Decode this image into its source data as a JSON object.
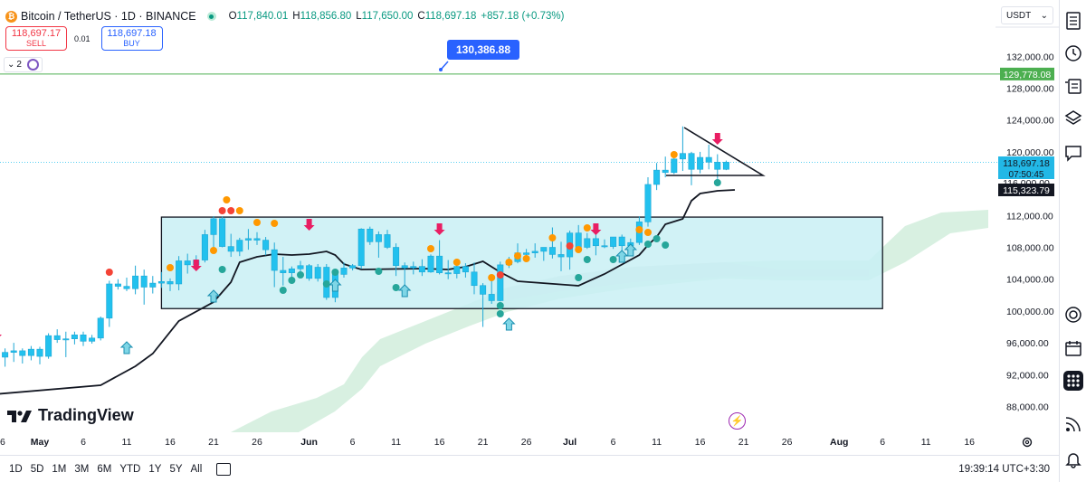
{
  "header": {
    "symbol_title": "Bitcoin / TetherUS · 1D · BINANCE",
    "logo_letter": "₿",
    "ohlc": [
      {
        "k": "O",
        "v": "117,840.01"
      },
      {
        "k": "H",
        "v": "118,856.80"
      },
      {
        "k": "L",
        "v": "117,650.00"
      },
      {
        "k": "C",
        "v": "118,697.18"
      },
      {
        "k": "",
        "v": "+857.18 (+0.73%)"
      }
    ]
  },
  "trade": {
    "sell_price": "118,697.17",
    "sell_label": "SELL",
    "spread": "0.01",
    "buy_price": "118,697.18",
    "buy_label": "BUY"
  },
  "indicators": {
    "count": "2",
    "toggle_icon": "chevron-down-icon"
  },
  "currency": {
    "value": "USDT",
    "chevron": "⌄"
  },
  "annotations": {
    "callout_price": "130,386.88",
    "hline_label": "129,778.08",
    "price_label": "118,697.18",
    "countdown": "07:50:45",
    "ma_label": "115,323.79"
  },
  "colors": {
    "up": "#22c1ee",
    "down": "#22c1ee",
    "box_fill": "#c9f0f4",
    "cloud": "#d8f0e1",
    "cloud_grey": "#d9dde3",
    "hline": "#4caf50",
    "callout": "#2962ff",
    "arrow_down": "#e91e63",
    "arrow_up": "#26a69a",
    "dot_orange": "#ff9800",
    "dot_red": "#f44336",
    "dot_green": "#26a69a"
  },
  "brand": "TradingView",
  "flash_icon": "lightning-icon",
  "timeframes": [
    "1D",
    "5D",
    "1M",
    "3M",
    "6M",
    "YTD",
    "1Y",
    "5Y",
    "All"
  ],
  "clock": "19:39:14 UTC+3:30",
  "right_toolbar_icons": [
    "watchlist-icon",
    "alert-clock-icon",
    "object-tree-icon",
    "data-window-icon",
    "layers-icon",
    "chat-icon",
    "target-icon",
    "calendar-icon",
    "apps-icon",
    "signal-icon",
    "bell-icon"
  ],
  "chart_data": {
    "type": "candlestick",
    "title": "Bitcoin / TetherUS · 1D · BINANCE",
    "y_ticks": [
      132000,
      128000,
      124000,
      120000,
      116000,
      112000,
      108000,
      104000,
      100000,
      96000,
      92000,
      88000
    ],
    "y_tick_labels": [
      "132,000.00",
      "128,000.00",
      "124,000.00",
      "120,000.00",
      "116,000.00",
      "112,000.00",
      "108,000.00",
      "104,000.00",
      "100,000.00",
      "96,000.00",
      "92,000.00",
      "88,000.00"
    ],
    "x_ticks": [
      "May",
      "6",
      "11",
      "16",
      "21",
      "26",
      "Jun",
      "6",
      "11",
      "16",
      "21",
      "26",
      "Jul",
      "6",
      "11",
      "16",
      "21",
      "26",
      "Aug",
      "6",
      "11",
      "16"
    ],
    "x_tick_days": [
      1,
      6,
      11,
      16,
      21,
      26,
      32,
      37,
      42,
      47,
      52,
      57,
      62,
      67,
      72,
      77,
      82,
      87,
      93,
      98,
      103,
      108
    ],
    "range_box": {
      "y_top": 111800,
      "y_bottom": 100300,
      "day_start": 15,
      "day_end": 98
    },
    "horizontal_line": 129778.08,
    "candles": [
      [
        -4,
        94900,
        95700,
        93800,
        94200
      ],
      [
        -3,
        94200,
        95300,
        93000,
        94800
      ],
      [
        -2,
        94800,
        96000,
        93600,
        95000
      ],
      [
        -1,
        95000,
        95300,
        93400,
        94400
      ],
      [
        0,
        94400,
        95600,
        93800,
        95200
      ],
      [
        1,
        95200,
        95500,
        93300,
        94300
      ],
      [
        2,
        94300,
        97200,
        94000,
        96900
      ],
      [
        3,
        96900,
        97700,
        96000,
        96400
      ],
      [
        4,
        96400,
        97400,
        94200,
        96500
      ],
      [
        5,
        96500,
        97400,
        95800,
        97000
      ],
      [
        6,
        97000,
        97400,
        95600,
        96200
      ],
      [
        7,
        96200,
        97000,
        95900,
        96600
      ],
      [
        8,
        96600,
        99300,
        96300,
        99100
      ],
      [
        9,
        99100,
        103800,
        98000,
        103400
      ],
      [
        10,
        103400,
        104000,
        102700,
        103100
      ],
      [
        11,
        103100,
        104200,
        102500,
        102800
      ],
      [
        12,
        102800,
        105700,
        102100,
        104400
      ],
      [
        13,
        104400,
        105200,
        100800,
        103000
      ],
      [
        14,
        103000,
        104400,
        102200,
        103500
      ],
      [
        15,
        103500,
        104900,
        102900,
        103700
      ],
      [
        16,
        103700,
        104100,
        102500,
        103400
      ],
      [
        17,
        103400,
        106900,
        102600,
        106300
      ],
      [
        18,
        106300,
        107200,
        104700,
        105800
      ],
      [
        19,
        105800,
        107000,
        105300,
        106400
      ],
      [
        20,
        106400,
        110200,
        106100,
        109600
      ],
      [
        21,
        109600,
        111900,
        107900,
        111600
      ],
      [
        22,
        111600,
        111900,
        108000,
        108100
      ],
      [
        23,
        108100,
        109700,
        106800,
        107500
      ],
      [
        24,
        107500,
        109200,
        106900,
        108900
      ],
      [
        25,
        108900,
        110300,
        107700,
        109100
      ],
      [
        26,
        109100,
        109900,
        108300,
        108900
      ],
      [
        27,
        108900,
        109300,
        107000,
        107700
      ],
      [
        28,
        107700,
        108600,
        103000,
        105100
      ],
      [
        29,
        105100,
        106800,
        103200,
        104800
      ],
      [
        30,
        104800,
        105600,
        103900,
        105300
      ],
      [
        31,
        105300,
        106300,
        104900,
        105700
      ],
      [
        32,
        105700,
        105900,
        103800,
        104100
      ],
      [
        33,
        104100,
        105900,
        103700,
        105500
      ],
      [
        34,
        105500,
        105900,
        101400,
        101700
      ],
      [
        35,
        101700,
        104900,
        101100,
        104600
      ],
      [
        36,
        104600,
        106100,
        104200,
        105400
      ],
      [
        37,
        105400,
        105900,
        105100,
        105700
      ],
      [
        38,
        105700,
        110400,
        105300,
        110300
      ],
      [
        39,
        110300,
        110600,
        108300,
        108700
      ],
      [
        40,
        108700,
        110000,
        106700,
        109600
      ],
      [
        41,
        109600,
        110200,
        107800,
        108000
      ],
      [
        42,
        108000,
        108500,
        104400,
        105700
      ],
      [
        43,
        105700,
        106100,
        102800,
        105400
      ],
      [
        44,
        105400,
        106200,
        104600,
        105600
      ],
      [
        45,
        105600,
        106500,
        104400,
        104900
      ],
      [
        46,
        104900,
        107100,
        104800,
        106900
      ],
      [
        47,
        106900,
        108900,
        104600,
        104800
      ],
      [
        48,
        104800,
        106400,
        104000,
        104700
      ],
      [
        49,
        104700,
        105900,
        104100,
        105600
      ],
      [
        50,
        105600,
        106000,
        104200,
        104900
      ],
      [
        51,
        104900,
        106100,
        102100,
        103200
      ],
      [
        52,
        103200,
        103500,
        98000,
        102100
      ],
      [
        53,
        102100,
        104000,
        100900,
        101300
      ],
      [
        54,
        101300,
        106200,
        101200,
        105800
      ],
      [
        55,
        105800,
        106800,
        105400,
        106200
      ],
      [
        56,
        106200,
        108500,
        106000,
        107300
      ],
      [
        57,
        107300,
        107800,
        106600,
        107100
      ],
      [
        58,
        107300,
        108500,
        106700,
        107500
      ],
      [
        59,
        107500,
        108000,
        106300,
        108000
      ],
      [
        60,
        108000,
        110500,
        106600,
        107100
      ],
      [
        61,
        107100,
        108700,
        105000,
        106800
      ],
      [
        62,
        106800,
        110100,
        105200,
        109800
      ],
      [
        63,
        109800,
        110800,
        107400,
        108000
      ],
      [
        64,
        108000,
        109800,
        107800,
        109100
      ],
      [
        65,
        109100,
        109800,
        107000,
        108200
      ],
      [
        66,
        108200,
        109000,
        107900,
        108100
      ],
      [
        67,
        108100,
        109300,
        107800,
        109300
      ],
      [
        68,
        109300,
        109600,
        107300,
        108200
      ],
      [
        69,
        108200,
        109100,
        107600,
        108600
      ],
      [
        70,
        108600,
        111900,
        108300,
        111200
      ],
      [
        71,
        111200,
        116800,
        110600,
        115900
      ],
      [
        72,
        115900,
        118600,
        115200,
        117700
      ],
      [
        73,
        117700,
        119400,
        116800,
        117400
      ],
      [
        74,
        117400,
        119400,
        117200,
        119100
      ],
      [
        75,
        119100,
        123200,
        117600,
        119800
      ],
      [
        76,
        119800,
        120000,
        115800,
        117800
      ],
      [
        77,
        117800,
        120000,
        117300,
        119300
      ],
      [
        78,
        119300,
        120900,
        117800,
        118700
      ],
      [
        79,
        118700,
        119700,
        116600,
        117800
      ],
      [
        80,
        117800,
        118900,
        117700,
        118700
      ]
    ]
  }
}
